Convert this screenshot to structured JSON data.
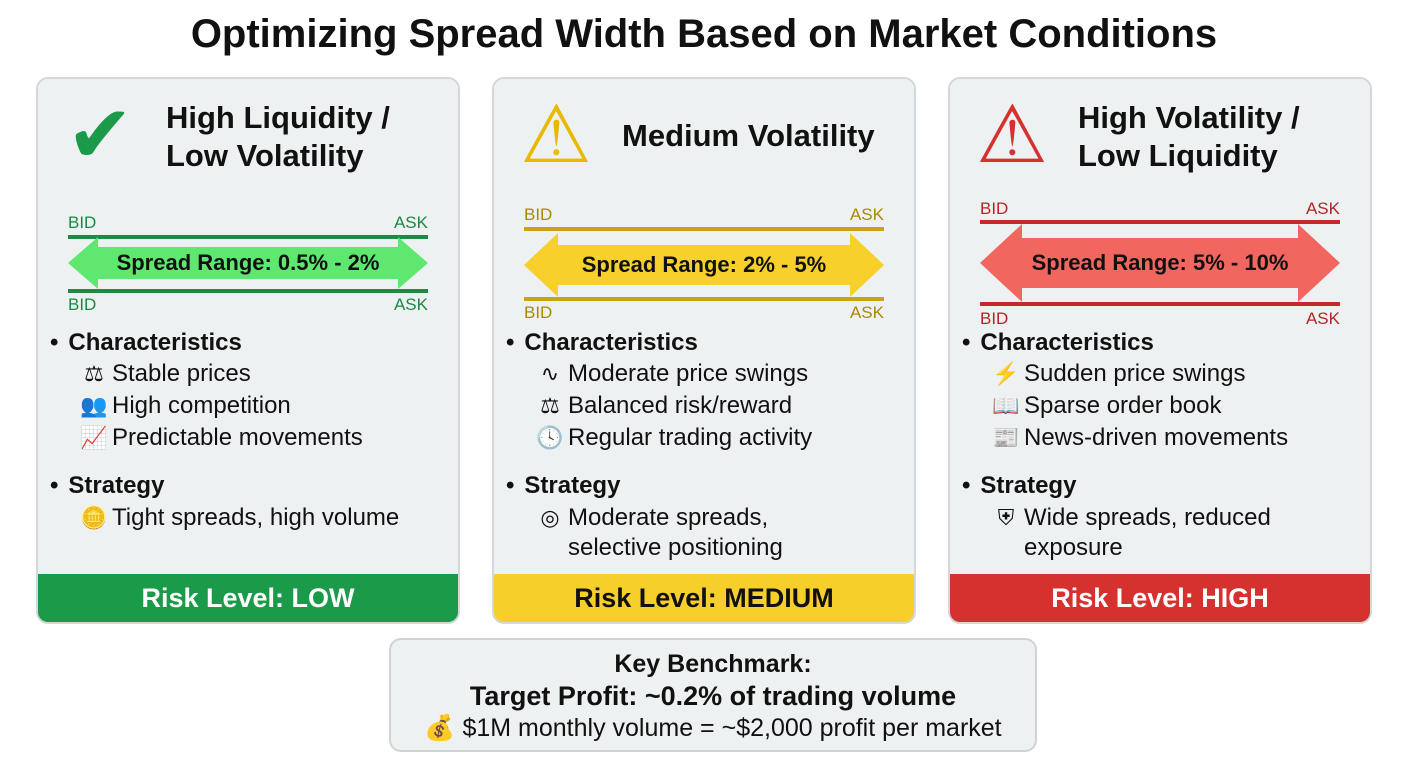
{
  "title": "Optimizing Spread Width Based on Market Conditions",
  "colors": {
    "low": "#1b9a4a",
    "medium": "#f7cf2a",
    "high": "#d5312f"
  },
  "cards": [
    {
      "title_line1": "High Liquidity /",
      "title_line2": "Low Volatility",
      "icon": "check-wave-icon",
      "bid": "BID",
      "ask": "ASK",
      "spread": "Spread Range: 0.5% - 2%",
      "characteristics_label": "Characteristics",
      "characteristics": [
        {
          "icon": "scale-icon",
          "text": "Stable prices"
        },
        {
          "icon": "people-icon",
          "text": "High competition"
        },
        {
          "icon": "chart-up-icon",
          "text": "Predictable movements"
        }
      ],
      "strategy_label": "Strategy",
      "strategy": {
        "icon": "coins-icon",
        "line1": "Tight spreads, high volume",
        "line2": ""
      },
      "risk": "Risk Level: LOW"
    },
    {
      "title_line1": "Medium Volatility",
      "title_line2": "",
      "icon": "warning-icon",
      "bid": "BID",
      "ask": "ASK",
      "spread": "Spread Range: 2% - 5%",
      "characteristics_label": "Characteristics",
      "characteristics": [
        {
          "icon": "wave-icon",
          "text": "Moderate price swings"
        },
        {
          "icon": "seesaw-icon",
          "text": "Balanced risk/reward"
        },
        {
          "icon": "clock-icon",
          "text": "Regular trading activity"
        }
      ],
      "strategy_label": "Strategy",
      "strategy": {
        "icon": "target-icon",
        "line1": "Moderate spreads,",
        "line2": "selective positioning"
      },
      "risk": "Risk Level: MEDIUM"
    },
    {
      "title_line1": "High Volatility /",
      "title_line2": "Low Liquidity",
      "icon": "danger-chart-down-icon",
      "bid": "BID",
      "ask": "ASK",
      "spread": "Spread Range: 5% - 10%",
      "characteristics_label": "Characteristics",
      "characteristics": [
        {
          "icon": "lightning-icon",
          "text": "Sudden price swings"
        },
        {
          "icon": "book-icon",
          "text": "Sparse order book"
        },
        {
          "icon": "newspaper-icon",
          "text": "News-driven movements"
        }
      ],
      "strategy_label": "Strategy",
      "strategy": {
        "icon": "shield-icon",
        "line1": "Wide spreads, reduced",
        "line2": "exposure"
      },
      "risk": "Risk Level: HIGH"
    }
  ],
  "benchmark": {
    "heading": "Key Benchmark:",
    "target": "Target Profit: ~0.2% of trading volume",
    "detail": "$1M monthly volume = ~$2,000 profit per market",
    "icon": "money-hand-icon"
  }
}
